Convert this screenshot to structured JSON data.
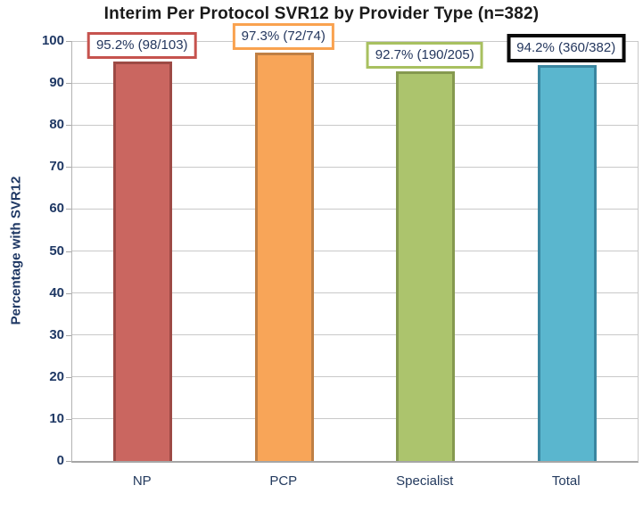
{
  "chart_data": {
    "type": "bar",
    "title": "Interim Per Protocol SVR12 by Provider Type (n=382)",
    "ylabel": "Percentage with SVR12",
    "xlabel": "",
    "ylim": [
      0,
      100
    ],
    "yticks": [
      0,
      10,
      20,
      30,
      40,
      50,
      60,
      70,
      80,
      90,
      100
    ],
    "grid": "horizontal-major",
    "legend": "none",
    "categories": [
      "NP",
      "PCP",
      "Specialist",
      "Total"
    ],
    "values": [
      95.2,
      97.3,
      92.7,
      94.2
    ],
    "bars": [
      {
        "category": "NP",
        "value": 95.2,
        "numerator": 98,
        "denominator": 103,
        "label": "95.2% (98/103)",
        "fill": "#CA6660",
        "border": "#9D4A45",
        "label_border": "#C6534E",
        "label_border_width": 3
      },
      {
        "category": "PCP",
        "value": 97.3,
        "numerator": 72,
        "denominator": 74,
        "label": "97.3% (72/74)",
        "fill": "#F8A558",
        "border": "#BF7F44",
        "label_border": "#F9A24F",
        "label_border_width": 3
      },
      {
        "category": "Specialist",
        "value": 92.7,
        "numerator": 190,
        "denominator": 205,
        "label": "92.7% (190/205)",
        "fill": "#ACC46D",
        "border": "#85994F",
        "label_border": "#A8C060",
        "label_border_width": 3
      },
      {
        "category": "Total",
        "value": 94.2,
        "numerator": 360,
        "denominator": 382,
        "label": "94.2% (360/382)",
        "fill": "#5AB6CE",
        "border": "#3A86A0",
        "label_border": "#0A0A0A",
        "label_border_width": 4
      }
    ]
  },
  "colors": {
    "title_text": "#1A1A1A",
    "axis_text": "#1F3864",
    "label_text": "#24375E",
    "gridline": "#C9C9C9",
    "axis_line": "#A6A6A6",
    "background": "#FFFFFF"
  }
}
